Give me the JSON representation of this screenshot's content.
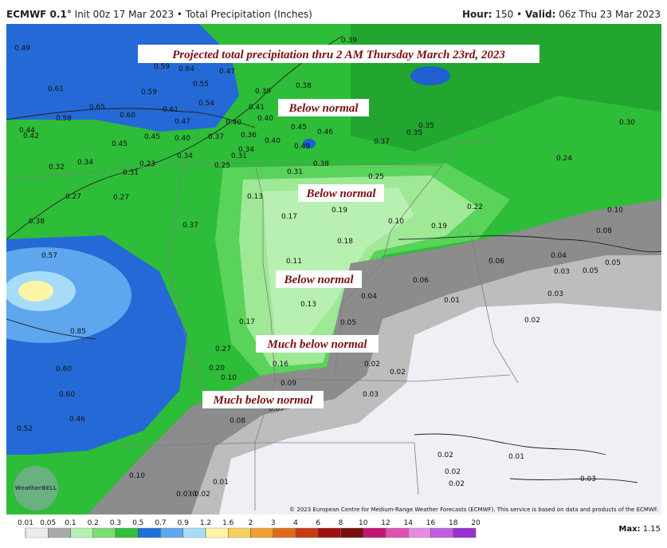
{
  "header": {
    "model": "ECMWF 0.1°",
    "description": "Init 00z 17 Mar 2023 • Total Precipitation (Inches)",
    "hour_label": "Hour:",
    "hour_value": "150 •",
    "valid_label": "Valid:",
    "valid_value": "06z Thu 23 Mar 2023"
  },
  "annotations": {
    "title": "Projected total precipitation thru 2 AM Thursday March 23rd, 2023",
    "labels": [
      "Below normal",
      "Below normal",
      "Below normal",
      "Much below normal",
      "Much below normal"
    ]
  },
  "map": {
    "point_values": [
      "0.49",
      "0.59",
      "0.64",
      "0.47",
      "0.39",
      "0.61",
      "0.59",
      "0.55",
      "0.38",
      "0.39",
      "0.65",
      "0.54",
      "0.41",
      "0.60",
      "0.61",
      "0.58",
      "0.47",
      "0.40",
      "0.40",
      "0.45",
      "0.46",
      "0.35",
      "0.35",
      "0.30",
      "0.44",
      "0.42",
      "0.45",
      "0.45",
      "0.40",
      "0.37",
      "0.36",
      "0.40",
      "0.49",
      "0.37",
      "0.34",
      "0.31",
      "0.34",
      "0.32",
      "0.34",
      "0.31",
      "0.23",
      "0.25",
      "0.38",
      "0.31",
      "0.24",
      "0.25",
      "0.27",
      "0.27",
      "0.13",
      "0.19",
      "0.10",
      "0.22",
      "0.19",
      "0.10",
      "0.17",
      "0.08",
      "0.37",
      "0.38",
      "0.18",
      "0.57",
      "0.11",
      "0.06",
      "0.04",
      "0.06",
      "0.03",
      "0.05",
      "0.05",
      "0.13",
      "0.04",
      "0.01",
      "0.03",
      "0.17",
      "0.05",
      "0.02",
      "0.85",
      "0.27",
      "0.16",
      "0.02",
      "0.02",
      "0.60",
      "0.20",
      "0.10",
      "0.09",
      "0.03",
      "0.60",
      "0.07",
      "0.08",
      "0.46",
      "0.52",
      "0.02",
      "0.01",
      "0.02",
      "0.02",
      "0.03",
      "0.10",
      "0.01",
      "0.030",
      "0.02"
    ],
    "logo": "WeatherBELL",
    "copyright": "© 2023 European Centre for Medium-Range Weather Forecasts (ECMWF). This service is based on data and products of the ECMWF."
  },
  "legend": {
    "ticks": [
      0.01,
      0.05,
      0.1,
      0.2,
      0.3,
      0.5,
      0.7,
      0.9,
      1.2,
      1.6,
      2,
      3,
      4,
      6,
      8,
      10,
      12,
      14,
      16,
      18,
      20
    ],
    "colors": [
      "#ececec",
      "#a9a9a9",
      "#b4f0b0",
      "#7bdc74",
      "#2fbf3a",
      "#1f6fd6",
      "#5ea6ee",
      "#a6dcf8",
      "#fff5a8",
      "#f5d060",
      "#f0a030",
      "#e06a1a",
      "#c83a16",
      "#a01010",
      "#7a0d0d",
      "#c01870",
      "#e050b0",
      "#e88ae0",
      "#c060e0",
      "#9a30d0"
    ],
    "max_label": "Max:",
    "max_value": "1.15"
  }
}
